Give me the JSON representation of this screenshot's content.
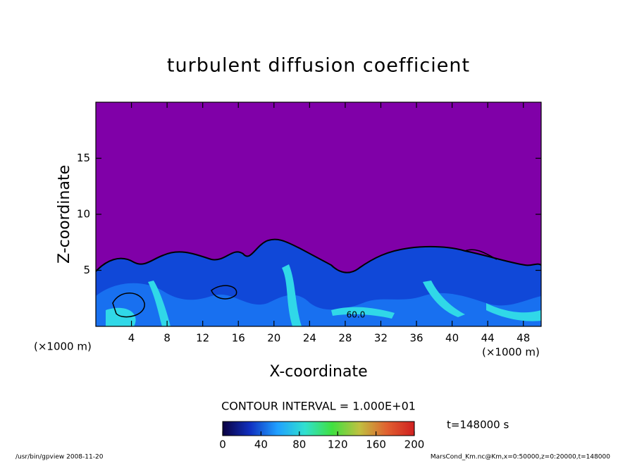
{
  "chart_data": {
    "type": "contour",
    "title": "turbulent diffusion coefficient",
    "x_label": "X-coordinate",
    "y_label": "Z-coordinate",
    "x_unit": "(×1000 m)",
    "y_unit": "(×1000 m)",
    "xlim": [
      0,
      50
    ],
    "xticks": [
      4,
      8,
      12,
      16,
      20,
      24,
      28,
      32,
      36,
      40,
      44,
      48
    ],
    "ylim": [
      0,
      20
    ],
    "yticks": [
      5,
      10,
      15
    ],
    "contour_labels": [
      "60.0"
    ],
    "contour_interval": "CONTOUR INTERVAL = 1.000E+01",
    "time_label": "t=148000 s",
    "colorbar": {
      "clim": [
        0,
        200
      ],
      "ticks": [
        0,
        40,
        80,
        120,
        160,
        200
      ],
      "colors": [
        "#0a0040",
        "#1030c0",
        "#20a0ff",
        "#30e0d0",
        "#40e040",
        "#c0c040",
        "#e06030",
        "#d02020"
      ]
    },
    "background_color": "#8000a8",
    "footer_left": "/usr/bin/gpview   2008-11-20",
    "footer_right": "MarsCond_Km.nc@Km,x=0:50000,z=0:20000,t=148000"
  }
}
